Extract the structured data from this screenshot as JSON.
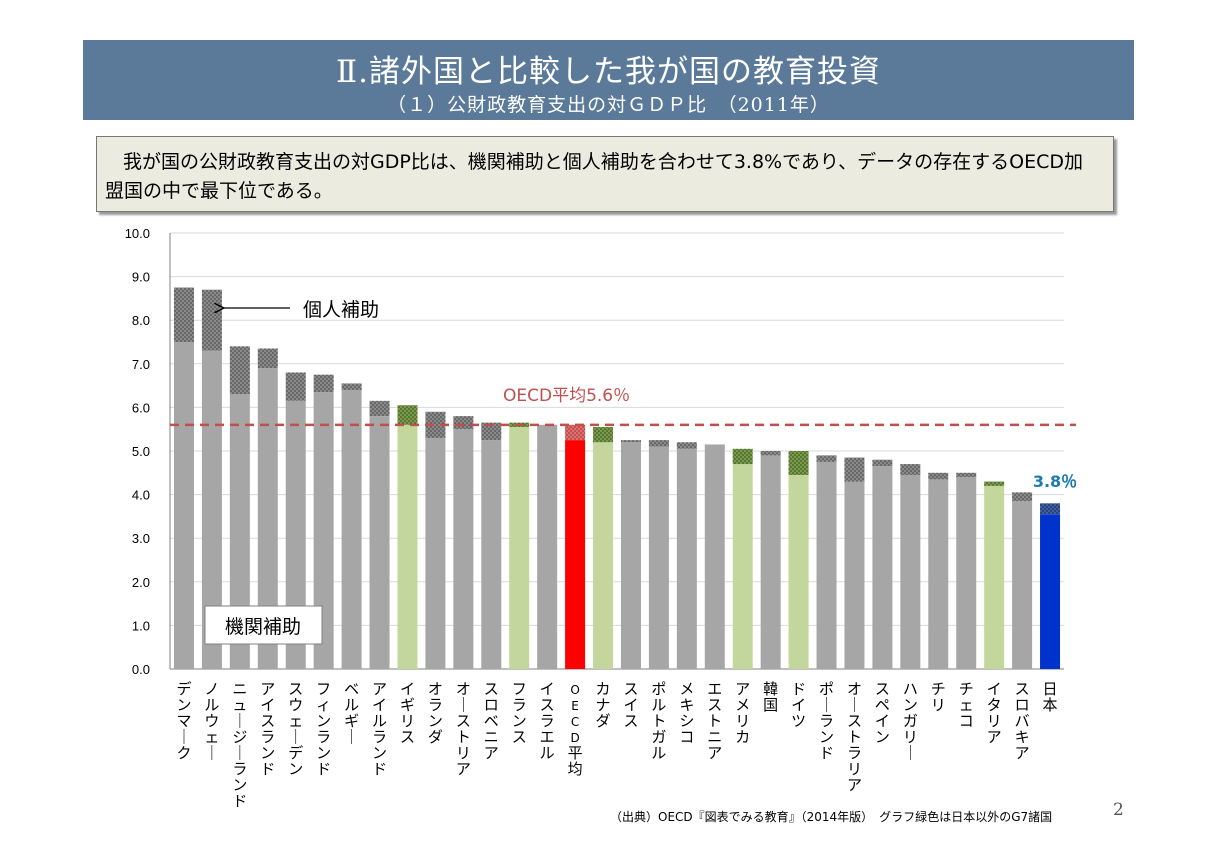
{
  "slide": {
    "title": "Ⅱ.諸外国と比較した我が国の教育投資",
    "subtitle": "（１）公財政教育支出の対ＧＤＰ比　（2011年）",
    "summary": "我が国の公財政教育支出の対GDP比は、機関補助と個人補助を合わせて3.8%であり、データの存在するOECD加盟国の中で最下位である。",
    "source": "（出典）OECD『図表でみる教育』（2014年版）　グラフ緑色は日本以外のG7諸国",
    "page_number": "2"
  },
  "colors": {
    "default_base": "#a6a6a6",
    "g7_base": "#c3d69b",
    "oecd_base": "#ff0000",
    "japan_base": "#0033cc",
    "default_top": "#7f7f7f",
    "g7_top": "#6a8a3a",
    "oecd_top": "#d96060",
    "japan_top": "#2f4f8f",
    "oecd_line": "#c0504d",
    "japan_label": "#1f7ab0"
  },
  "chart_data": {
    "type": "bar",
    "stacked": true,
    "ylim": [
      0,
      10
    ],
    "yticks": [
      "0.0",
      "1.0",
      "2.0",
      "3.0",
      "4.0",
      "5.0",
      "6.0",
      "7.0",
      "8.0",
      "9.0",
      "10.0"
    ],
    "grid": true,
    "categories": [
      "デンマーク",
      "ノルウェー",
      "ニュージーランド",
      "アイスランド",
      "スウェーデン",
      "フィンランド",
      "ベルギー",
      "アイルランド",
      "イギリス",
      "オランダ",
      "オーストリア",
      "スロベニア",
      "フランス",
      "イスラエル",
      "OECD平均",
      "カナダ",
      "スイス",
      "ポルトガル",
      "メキシコ",
      "エストニア",
      "アメリカ",
      "韓国",
      "ドイツ",
      "ポーランド",
      "オーストラリア",
      "スペイン",
      "ハンガリー",
      "チリ",
      "チェコ",
      "イタリア",
      "スロバキア",
      "日本"
    ],
    "category_type": [
      "default",
      "default",
      "default",
      "default",
      "default",
      "default",
      "default",
      "default",
      "g7",
      "default",
      "default",
      "default",
      "g7",
      "default",
      "oecd",
      "g7",
      "default",
      "default",
      "default",
      "default",
      "g7",
      "default",
      "g7",
      "default",
      "default",
      "default",
      "default",
      "default",
      "default",
      "g7",
      "default",
      "japan"
    ],
    "series": [
      {
        "name": "機関補助",
        "values": [
          7.5,
          7.3,
          6.3,
          6.9,
          6.15,
          6.35,
          6.4,
          5.8,
          5.6,
          5.3,
          5.5,
          5.25,
          5.55,
          5.6,
          5.25,
          5.2,
          5.2,
          5.1,
          5.05,
          5.15,
          4.7,
          4.9,
          4.45,
          4.75,
          4.3,
          4.65,
          4.45,
          4.35,
          4.4,
          4.2,
          3.85,
          3.55
        ]
      },
      {
        "name": "個人補助",
        "values": [
          1.25,
          1.4,
          1.1,
          0.45,
          0.65,
          0.4,
          0.15,
          0.35,
          0.45,
          0.6,
          0.3,
          0.4,
          0.1,
          0.0,
          0.35,
          0.35,
          0.05,
          0.15,
          0.15,
          0.0,
          0.35,
          0.1,
          0.55,
          0.15,
          0.55,
          0.15,
          0.25,
          0.15,
          0.1,
          0.1,
          0.2,
          0.25
        ]
      }
    ],
    "reference_line": {
      "value": 5.6,
      "label": "OECD平均5.6％"
    },
    "annotations": {
      "personal_label": "個人補助",
      "institutional_label": "機関補助",
      "japan_label": "3.8％"
    }
  }
}
